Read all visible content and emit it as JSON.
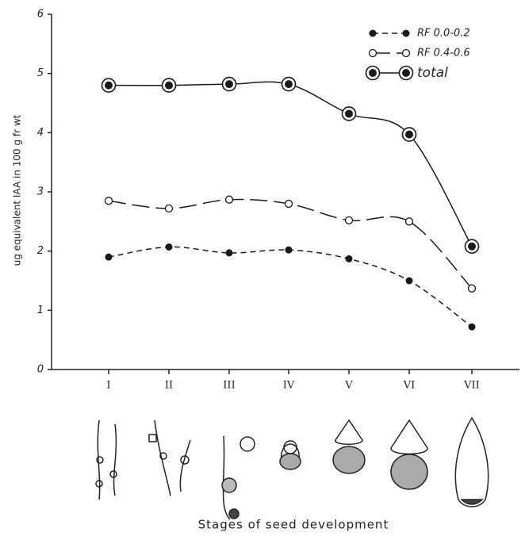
{
  "chart_data": {
    "type": "line",
    "ylabel": "ug equivalent IAA in 100 g fr wt",
    "xlabel": "Stages of seed development",
    "categories": [
      "I",
      "II",
      "III",
      "IV",
      "V",
      "VI",
      "VII"
    ],
    "series": [
      {
        "name": "RF 0.0-0.2",
        "color": "#1a1a1a",
        "marker": "filled",
        "dash": "7 5",
        "values": [
          1.9,
          2.07,
          1.97,
          2.02,
          1.87,
          1.5,
          0.72
        ]
      },
      {
        "name": "RF 0.4-0.6",
        "color": "#1a1a1a",
        "marker": "open",
        "dash": "22 8",
        "values": [
          2.85,
          2.72,
          2.87,
          2.8,
          2.52,
          2.5,
          1.37
        ]
      },
      {
        "name": "total",
        "color": "#1a1a1a",
        "marker": "ringed",
        "dash": "none",
        "values": [
          4.8,
          4.8,
          4.82,
          4.82,
          4.32,
          3.97,
          2.08
        ]
      }
    ],
    "ylim": [
      0,
      6
    ],
    "yticks": [
      0,
      1,
      2,
      3,
      4,
      5,
      6
    ],
    "legend": "upper right"
  }
}
